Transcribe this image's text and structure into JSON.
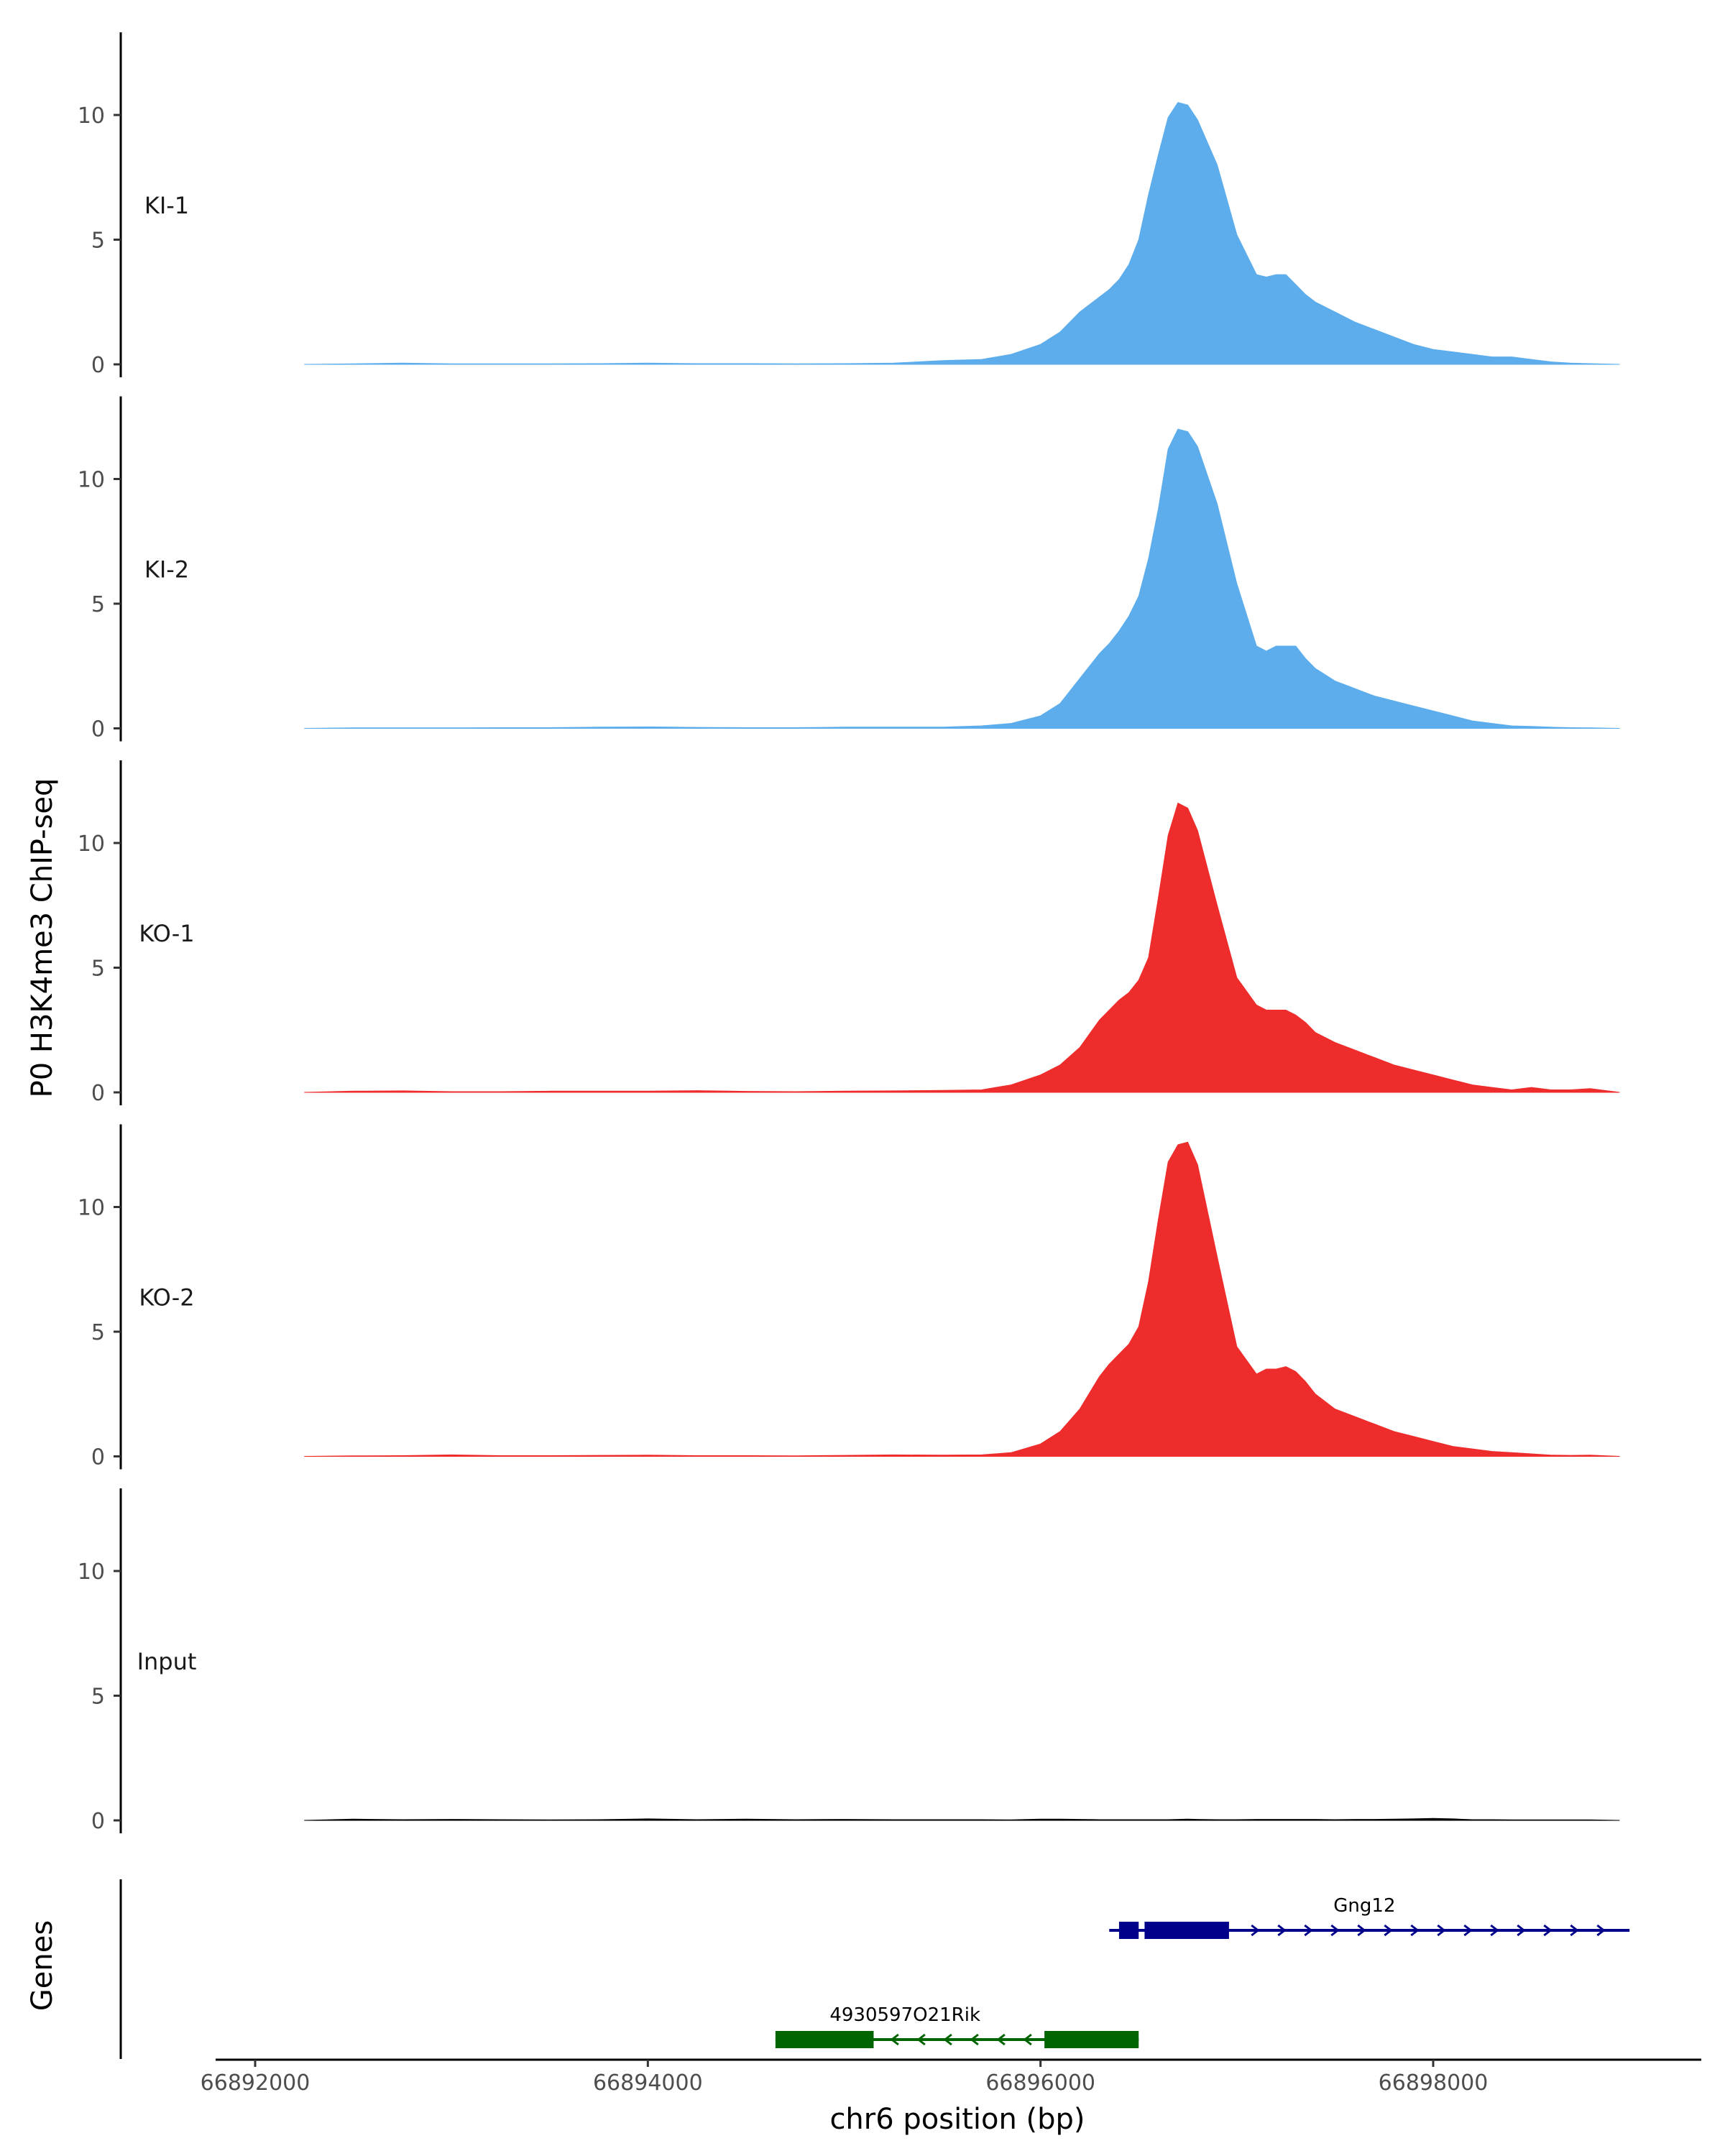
{
  "chart_data": {
    "type": "area",
    "title": "",
    "ylabel": "P0 H3K4me3 ChIP-seq",
    "xlabel": "chr6 position (bp)",
    "xlim": [
      66891800,
      66899300
    ],
    "ylim": [
      0,
      13.2
    ],
    "y_ticks": [
      0,
      5,
      10
    ],
    "x_ticks": [
      66892000,
      66894000,
      66896000,
      66898000
    ],
    "x_tick_labels": [
      "66892000",
      "66894000",
      "66896000",
      "66898000"
    ],
    "colors": {
      "KI": "#5DADEC",
      "KO": "#EE2C2C",
      "Input": "#000000",
      "gene_plus": "#00008B",
      "gene_minus": "#006400"
    },
    "x": [
      66892250,
      66892500,
      66892750,
      66893000,
      66893250,
      66893500,
      66893750,
      66894000,
      66894250,
      66894500,
      66894750,
      66895000,
      66895250,
      66895500,
      66895700,
      66895850,
      66896000,
      66896100,
      66896200,
      66896300,
      66896350,
      66896400,
      66896450,
      66896500,
      66896550,
      66896600,
      66896650,
      66896700,
      66896750,
      66896800,
      66896900,
      66897000,
      66897100,
      66897150,
      66897200,
      66897250,
      66897300,
      66897350,
      66897400,
      66897500,
      66897600,
      66897700,
      66897800,
      66897900,
      66898000,
      66898100,
      66898200,
      66898300,
      66898400,
      66898500,
      66898600,
      66898700,
      66898800,
      66898950
    ],
    "series": [
      {
        "name": "KI-1",
        "group": "KI",
        "values": [
          0,
          0.02,
          0.05,
          0.02,
          0.02,
          0.02,
          0.03,
          0.05,
          0.03,
          0.03,
          0.02,
          0.03,
          0.05,
          0.15,
          0.2,
          0.4,
          0.8,
          1.3,
          2.1,
          2.7,
          3.0,
          3.4,
          4.0,
          5.0,
          6.8,
          8.4,
          9.9,
          10.5,
          10.4,
          9.8,
          8.0,
          5.2,
          3.6,
          3.5,
          3.6,
          3.6,
          3.2,
          2.8,
          2.5,
          2.1,
          1.7,
          1.4,
          1.1,
          0.8,
          0.6,
          0.5,
          0.4,
          0.3,
          0.3,
          0.2,
          0.1,
          0.05,
          0.03,
          0
        ]
      },
      {
        "name": "KI-2",
        "group": "KI",
        "values": [
          0,
          0.02,
          0.02,
          0.02,
          0.03,
          0.03,
          0.05,
          0.06,
          0.04,
          0.03,
          0.03,
          0.05,
          0.05,
          0.05,
          0.1,
          0.2,
          0.5,
          1.0,
          2.0,
          3.0,
          3.4,
          3.9,
          4.5,
          5.3,
          6.8,
          8.8,
          11.2,
          12.0,
          11.9,
          11.3,
          9.0,
          5.8,
          3.3,
          3.1,
          3.3,
          3.3,
          3.3,
          2.8,
          2.4,
          1.9,
          1.6,
          1.3,
          1.1,
          0.9,
          0.7,
          0.5,
          0.3,
          0.2,
          0.1,
          0.08,
          0.05,
          0.03,
          0.02,
          0
        ]
      },
      {
        "name": "KO-1",
        "group": "KO",
        "values": [
          0,
          0.05,
          0.06,
          0.03,
          0.03,
          0.05,
          0.05,
          0.05,
          0.07,
          0.04,
          0.03,
          0.05,
          0.06,
          0.08,
          0.1,
          0.3,
          0.7,
          1.1,
          1.8,
          2.9,
          3.3,
          3.7,
          4.0,
          4.5,
          5.4,
          7.8,
          10.3,
          11.6,
          11.4,
          10.5,
          7.5,
          4.6,
          3.5,
          3.3,
          3.3,
          3.3,
          3.1,
          2.8,
          2.4,
          2.0,
          1.7,
          1.4,
          1.1,
          0.9,
          0.7,
          0.5,
          0.3,
          0.2,
          0.1,
          0.2,
          0.1,
          0.1,
          0.15,
          0
        ]
      },
      {
        "name": "KO-2",
        "group": "KO",
        "values": [
          0,
          0.02,
          0.03,
          0.06,
          0.03,
          0.03,
          0.04,
          0.05,
          0.03,
          0.03,
          0.02,
          0.04,
          0.06,
          0.05,
          0.06,
          0.15,
          0.5,
          1.0,
          1.9,
          3.2,
          3.7,
          4.1,
          4.5,
          5.2,
          7.0,
          9.5,
          11.8,
          12.5,
          12.6,
          11.7,
          8.0,
          4.4,
          3.3,
          3.5,
          3.5,
          3.6,
          3.4,
          3.0,
          2.5,
          1.9,
          1.6,
          1.3,
          1.0,
          0.8,
          0.6,
          0.4,
          0.3,
          0.2,
          0.15,
          0.1,
          0.05,
          0.04,
          0.05,
          0
        ]
      },
      {
        "name": "Input",
        "group": "Input",
        "values": [
          0,
          0.05,
          0.03,
          0.04,
          0.03,
          0.02,
          0.03,
          0.06,
          0.03,
          0.05,
          0.03,
          0.04,
          0.03,
          0.03,
          0.03,
          0.02,
          0.05,
          0.05,
          0.04,
          0.03,
          0.03,
          0.03,
          0.03,
          0.03,
          0.03,
          0.03,
          0.03,
          0.04,
          0.05,
          0.04,
          0.03,
          0.03,
          0.04,
          0.04,
          0.04,
          0.04,
          0.04,
          0.04,
          0.04,
          0.03,
          0.04,
          0.04,
          0.05,
          0.06,
          0.08,
          0.06,
          0.03,
          0.03,
          0.02,
          0.02,
          0.02,
          0.02,
          0.02,
          0
        ]
      }
    ],
    "genes_track_label": "Genes",
    "genes": [
      {
        "name": "Gng12",
        "strand": "+",
        "start": 66896350,
        "end": 66899000,
        "exons": [
          [
            66896400,
            66896500
          ],
          [
            66896530,
            66896960
          ]
        ],
        "row": 1
      },
      {
        "name": "4930597O21Rik",
        "strand": "-",
        "start": 66894650,
        "end": 66896500,
        "exons": [
          [
            66894650,
            66895150
          ],
          [
            66896020,
            66896500
          ]
        ],
        "row": 2
      }
    ]
  }
}
